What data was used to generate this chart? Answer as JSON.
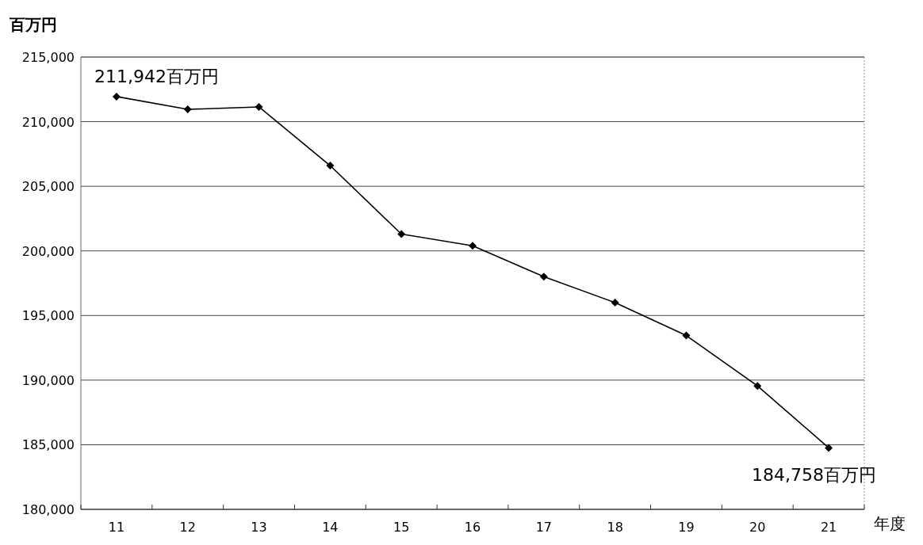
{
  "chart_data": {
    "type": "line",
    "ylabel": "百万円",
    "xlabel": "年度",
    "categories": [
      "11",
      "12",
      "13",
      "14",
      "15",
      "16",
      "17",
      "18",
      "19",
      "20",
      "21"
    ],
    "series": [
      {
        "color": "#000000",
        "values": [
          211942,
          210950,
          211140,
          206600,
          201300,
          200400,
          198000,
          196000,
          193450,
          189550,
          184758
        ]
      }
    ],
    "ylim": [
      180000,
      215000
    ],
    "yticks": [
      {
        "value": 180000,
        "label": "180,000"
      },
      {
        "value": 185000,
        "label": "185,000"
      },
      {
        "value": 190000,
        "label": "190,000"
      },
      {
        "value": 195000,
        "label": "195,000"
      },
      {
        "value": 200000,
        "label": "200,000"
      },
      {
        "value": 205000,
        "label": "205,000"
      },
      {
        "value": 210000,
        "label": "210,000"
      },
      {
        "value": 215000,
        "label": "215,000"
      }
    ],
    "grid": "y",
    "marker": "diamond",
    "line_style": "solid",
    "annotations": [
      {
        "text": "211,942百万円",
        "x": "11",
        "y": 211942
      },
      {
        "text": "184,758百万円",
        "x": "21",
        "y": 184758
      }
    ]
  }
}
